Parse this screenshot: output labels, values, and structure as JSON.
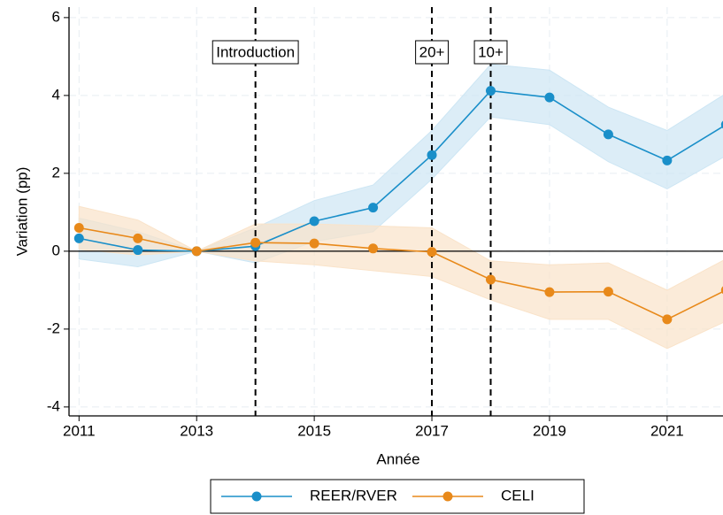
{
  "chart_data": {
    "type": "line",
    "x_label": "Année",
    "y_label": "Variation (pp)",
    "x": [
      2011,
      2012,
      2013,
      2014,
      2015,
      2016,
      2017,
      2018,
      2019,
      2020,
      2021,
      2022
    ],
    "series": [
      {
        "name": "REER/RVER",
        "color": "#1a8fc9",
        "band_color": "#cde6f4",
        "values": [
          0.33,
          0.03,
          0,
          0.13,
          0.77,
          1.12,
          2.47,
          4.12,
          3.95,
          3.0,
          2.33,
          3.25
        ],
        "upper": [
          0.85,
          0.5,
          0,
          0.6,
          1.3,
          1.7,
          3.1,
          4.8,
          4.65,
          3.7,
          3.1,
          4.05
        ],
        "lower": [
          -0.2,
          -0.4,
          0,
          -0.3,
          0.25,
          0.5,
          1.85,
          3.45,
          3.25,
          2.3,
          1.6,
          2.45
        ]
      },
      {
        "name": "CELI",
        "color": "#e8891a",
        "band_color": "#fae3c9",
        "values": [
          0.6,
          0.33,
          0,
          0.22,
          0.2,
          0.07,
          -0.02,
          -0.73,
          -1.05,
          -1.04,
          -1.75,
          -1.0
        ],
        "upper": [
          1.15,
          0.8,
          0,
          0.7,
          0.7,
          0.65,
          0.6,
          -0.25,
          -0.35,
          -0.3,
          -1.0,
          -0.2
        ],
        "lower": [
          0.05,
          -0.1,
          0,
          -0.25,
          -0.35,
          -0.5,
          -0.65,
          -1.25,
          -1.75,
          -1.75,
          -2.5,
          -1.8
        ]
      }
    ],
    "annotations": [
      {
        "text": "Introduction",
        "x": 2014
      },
      {
        "text": "20+",
        "x": 2017
      },
      {
        "text": "10+",
        "x": 2018
      }
    ],
    "reference_line": 0,
    "xlim": [
      2010.83,
      2021.95
    ],
    "xticks": [
      2011,
      2013,
      2015,
      2017,
      2019,
      2021
    ],
    "ylim": [
      -4.23,
      6.27
    ],
    "yticks": [
      -4,
      -2,
      0,
      2,
      4,
      6
    ],
    "grid": true
  }
}
